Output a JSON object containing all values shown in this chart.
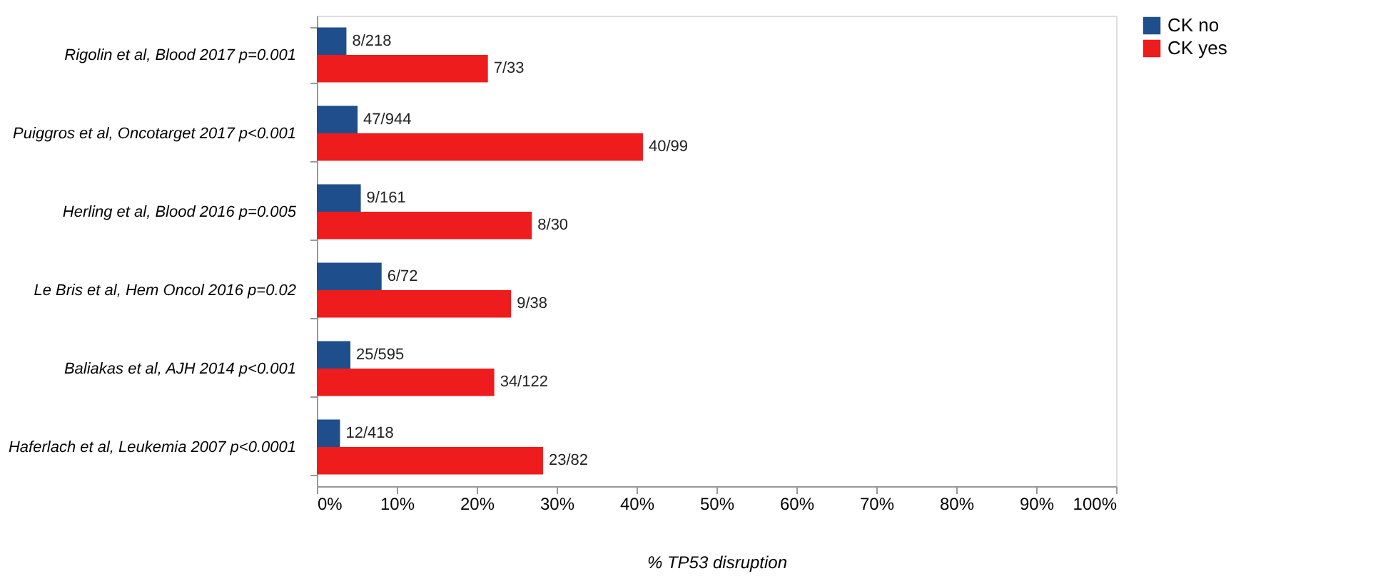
{
  "chart_data": {
    "type": "bar",
    "orientation": "horizontal",
    "xlabel": "% TP53 disruption",
    "categories": [
      "Rigolin et al, Blood 2017 p=0.001",
      "Puiggros et al, Oncotarget 2017 p<0.001",
      "Herling et al, Blood 2016 p=0.005",
      "Le Bris et al, Hem Oncol 2016 p=0.02",
      "Baliakas et al, AJH 2014 p<0.001",
      "Haferlach et al, Leukemia 2007 p<0.0001"
    ],
    "series": [
      {
        "name": "CK no",
        "color": "#1f4e8c",
        "values": [
          3.7,
          5.1,
          5.5,
          8.1,
          4.2,
          2.9
        ],
        "value_labels": [
          "8/218",
          "47/944",
          "9/161",
          "6/72",
          "25/595",
          "12/418"
        ]
      },
      {
        "name": "CK yes",
        "color": "#ee1c1c",
        "values": [
          21.4,
          40.8,
          26.9,
          24.3,
          22.2,
          28.3
        ],
        "value_labels": [
          "7/33",
          "40/99",
          "8/30",
          "9/38",
          "34/122",
          "23/82"
        ]
      }
    ],
    "xlim": [
      0,
      100
    ],
    "xticks": [
      {
        "value": 0,
        "label": "0%"
      },
      {
        "value": 10,
        "label": "10%"
      },
      {
        "value": 20,
        "label": "20%"
      },
      {
        "value": 30,
        "label": "30%"
      },
      {
        "value": 40,
        "label": "40%"
      },
      {
        "value": 50,
        "label": "50%"
      },
      {
        "value": 60,
        "label": "60%"
      },
      {
        "value": 70,
        "label": "70%"
      },
      {
        "value": 80,
        "label": "80%"
      },
      {
        "value": 90,
        "label": "90%"
      },
      {
        "value": 100,
        "label": "100%"
      }
    ],
    "grid": false,
    "legend": "right"
  }
}
